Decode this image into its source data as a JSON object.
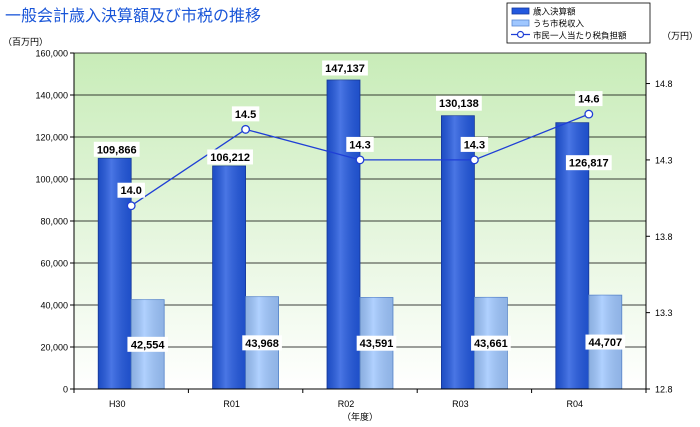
{
  "chart_data": {
    "type": "bar",
    "title": "一般会計歳入決算額及び市税の推移",
    "categories": [
      "H30",
      "R01",
      "R02",
      "R03",
      "R04"
    ],
    "series": [
      {
        "name": "歳入決算額",
        "type": "bar",
        "axis": "left",
        "values": [
          109866,
          106212,
          147137,
          130138,
          126817
        ],
        "value_labels": [
          "109,866",
          "106,212",
          "147,137",
          "130,138",
          "126,817"
        ],
        "color": "#2258df"
      },
      {
        "name": "うち市税収入",
        "type": "bar",
        "axis": "left",
        "values": [
          42554,
          43968,
          43591,
          43661,
          44707
        ],
        "value_labels": [
          "42,554",
          "43,968",
          "43,591",
          "43,661",
          "44,707"
        ],
        "color": "#9fc7ff"
      },
      {
        "name": "市民一人当たり税負担額",
        "type": "line",
        "axis": "right",
        "values": [
          14.0,
          14.5,
          14.3,
          14.3,
          14.6
        ],
        "value_labels": [
          "14.0",
          "14.5",
          "14.3",
          "14.3",
          "14.6"
        ],
        "color": "#1f3fd6",
        "marker": "circle"
      }
    ],
    "xlabel": "（年度）",
    "ylabel": "（百万円）",
    "y2label": "（万円）",
    "ylim": [
      0,
      160000
    ],
    "yticks": [
      "0",
      "20,000",
      "40,000",
      "60,000",
      "80,000",
      "100,000",
      "120,000",
      "140,000",
      "160,000"
    ],
    "y2lim": [
      12.8,
      15.0
    ],
    "y2ticks": [
      "12.8",
      "13.3",
      "13.8",
      "14.3",
      "14.8"
    ],
    "grid": true,
    "legend": "top-right",
    "plot_background": {
      "top": "#c8ecb8",
      "bottom": "#ffffff"
    },
    "title_color": "#1a56d8"
  }
}
